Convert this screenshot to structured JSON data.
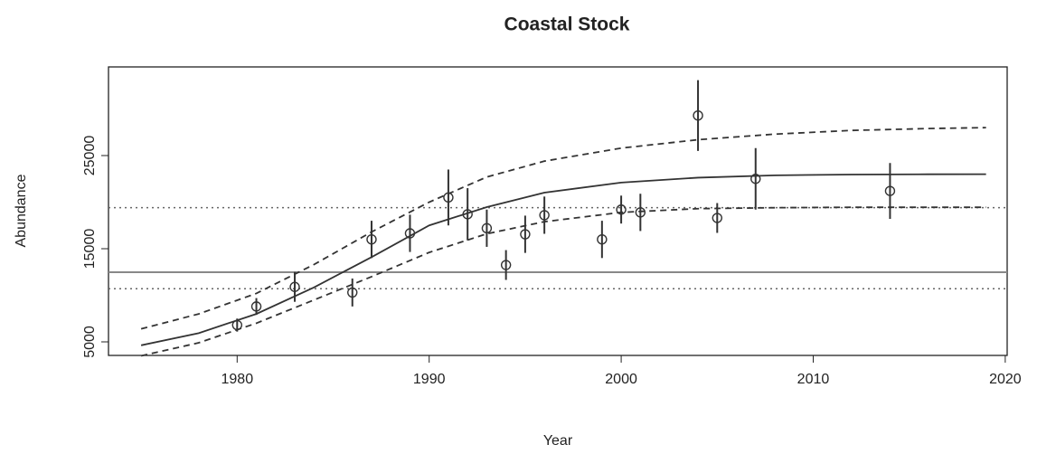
{
  "chart_data": {
    "type": "scatter",
    "title": "Coastal Stock",
    "x_label": "Year",
    "y_label": "Abundance",
    "xlim": [
      1973.3,
      2020.1
    ],
    "ylim": [
      3544,
      34515
    ],
    "xticks": [
      1980,
      1990,
      2000,
      2010,
      2020
    ],
    "yticks": [
      5000,
      15000,
      25000
    ],
    "color": "#333333",
    "x": [
      1980,
      1981,
      1983,
      1986,
      1987,
      1989,
      1991,
      1992,
      1993,
      1994,
      1995,
      1996,
      1999,
      2000,
      2001,
      2004,
      2005,
      2007,
      2014
    ],
    "values": [
      6800,
      8800,
      10900,
      10300,
      16000,
      16650,
      20500,
      18700,
      17200,
      13250,
      16550,
      18600,
      16000,
      19200,
      18900,
      29300,
      18300,
      22500,
      21200
    ],
    "errors": [
      700,
      900,
      1600,
      1500,
      2000,
      2000,
      3000,
      2800,
      2000,
      1600,
      2000,
      2000,
      2000,
      1500,
      2000,
      3800,
      1600,
      3300,
      3000
    ],
    "fit": {
      "x": [
        1975,
        1978,
        1981,
        1984,
        1987,
        1990,
        1993,
        1996,
        2000,
        2004,
        2008,
        2012,
        2016,
        2019
      ],
      "values": [
        4630,
        5940,
        8000,
        10840,
        14100,
        17500,
        19470,
        21020,
        22100,
        22630,
        22880,
        22960,
        22990,
        23000
      ],
      "upper": [
        6400,
        8000,
        10200,
        13300,
        16800,
        20000,
        22700,
        24400,
        25800,
        26700,
        27300,
        27700,
        27900,
        28000
      ],
      "lower": [
        3500,
        4900,
        7000,
        9500,
        12000,
        14600,
        16600,
        17900,
        18900,
        19300,
        19400,
        19450,
        19450,
        19450
      ]
    },
    "hlines": [
      {
        "value": 12480,
        "style": "solid",
        "color": "#888888"
      },
      {
        "value": 19400,
        "style": "dotted",
        "color": "#666666"
      },
      {
        "value": 10700,
        "style": "dotted",
        "color": "#666666"
      }
    ]
  }
}
